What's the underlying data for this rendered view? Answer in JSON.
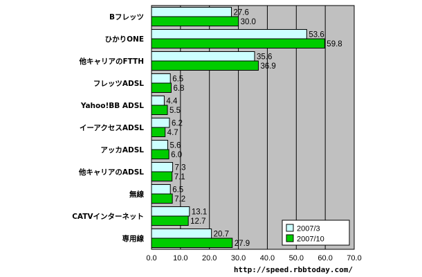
{
  "chart_data": {
    "type": "bar",
    "orientation": "horizontal",
    "categories": [
      "Bフレッツ",
      "ひかりONE",
      "他キャリアのFTTH",
      "フレッツADSL",
      "Yahoo!BB ADSL",
      "イーアクセスADSL",
      "アッカADSL",
      "他キャリアのADSL",
      "無線",
      "CATVインターネット",
      "専用線"
    ],
    "series": [
      {
        "name": "2007/3",
        "values": [
          27.6,
          53.6,
          35.6,
          6.5,
          4.4,
          6.2,
          5.6,
          7.3,
          6.5,
          13.1,
          20.7
        ]
      },
      {
        "name": "2007/10",
        "values": [
          30.0,
          59.8,
          36.9,
          6.8,
          5.5,
          4.7,
          6.0,
          7.1,
          7.2,
          12.7,
          27.9
        ]
      }
    ],
    "xlim": [
      0,
      70
    ],
    "xticks": [
      "0.0",
      "10.0",
      "20.0",
      "30.0",
      "40.0",
      "50.0",
      "60.0",
      "70.0"
    ],
    "value_labels": [
      [
        "27.6",
        "53.6",
        "35.6",
        "6.5",
        "4.4",
        "6.2",
        "5.6",
        "7.3",
        "6.5",
        "13.1",
        "20.7"
      ],
      [
        "30.0",
        "59.8",
        "36.9",
        "6.8",
        "5.5",
        "4.7",
        "6.0",
        "7.1",
        "7.2",
        "12.7",
        "27.9"
      ]
    ],
    "grid": true,
    "legend": "bottom-right",
    "colors": {
      "plot_bg": "#c0c0c0",
      "series_1": "#ccffff",
      "series_2": "#00cc00"
    }
  },
  "source_text": "http://speed.rbbtoday.com/"
}
